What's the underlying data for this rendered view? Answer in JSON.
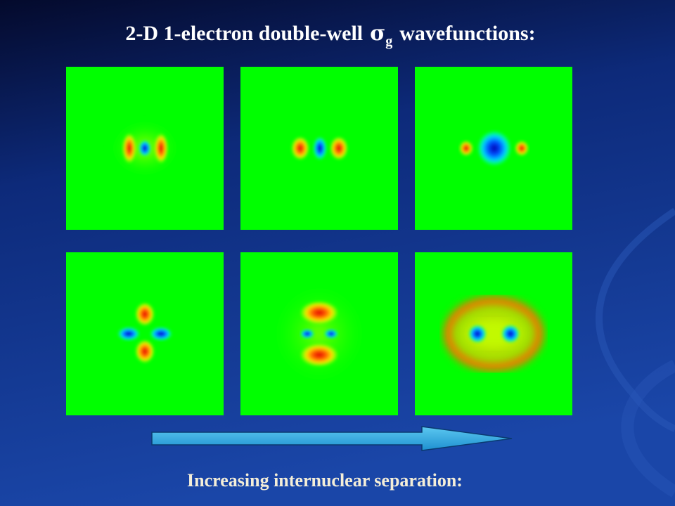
{
  "title": {
    "main": "2-D 1-electron double-well",
    "symbol": "σ",
    "subscript": "g",
    "tail": "wavefunctions:"
  },
  "caption": "Increasing internuclear separation:"
}
